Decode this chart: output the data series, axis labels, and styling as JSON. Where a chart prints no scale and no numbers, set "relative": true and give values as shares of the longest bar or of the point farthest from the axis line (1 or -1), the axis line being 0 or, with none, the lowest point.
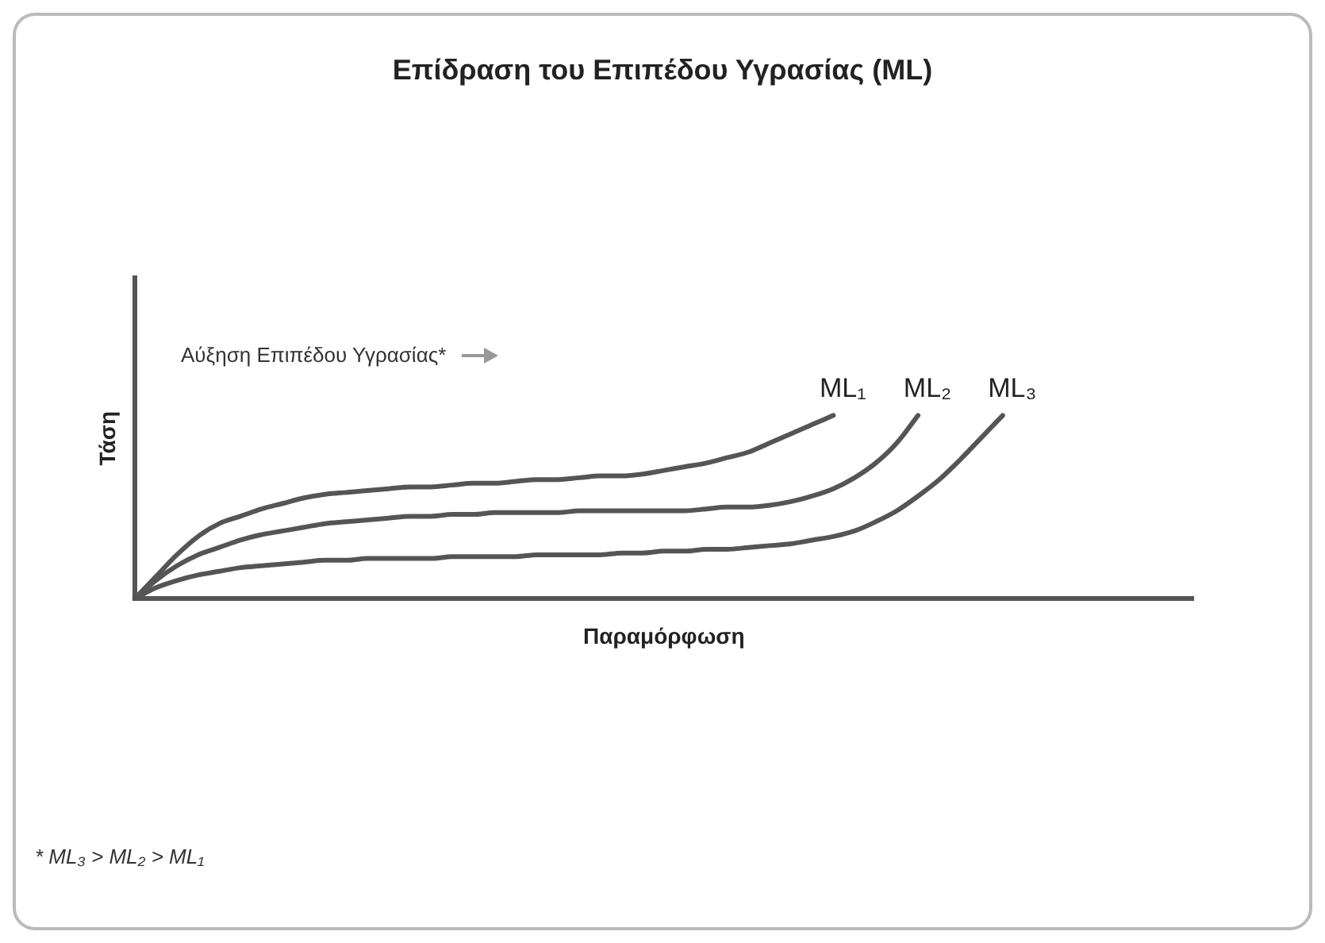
{
  "chart_data": {
    "type": "line",
    "relative": true,
    "title": "Επίδραση του Επιπέδου Υγρασίας (ML)",
    "xlabel": "Παραμόρφωση",
    "ylabel": "Τάση",
    "tick_labels": false,
    "legend": false,
    "annotations": [
      "Αύξηση Επιπέδου Υγρασίας*",
      "* ML₃ > ML₂ > ML₁"
    ],
    "categories": [
      null,
      null,
      null,
      null,
      null,
      null,
      null,
      null,
      null,
      null,
      null,
      null,
      null,
      null,
      null,
      null,
      null,
      null,
      null,
      null,
      null,
      null,
      null,
      null,
      null,
      null,
      null,
      null,
      null,
      null,
      null,
      null,
      null,
      null,
      null,
      null,
      null,
      null,
      null,
      null,
      null,
      null,
      null,
      null,
      null,
      null,
      null,
      null,
      null,
      null,
      null
    ],
    "series": [
      {
        "name": "ML₁",
        "color": "#555555",
        "values": [
          0,
          0.12,
          0.24,
          0.34,
          0.41,
          0.45,
          0.49,
          0.52,
          0.55,
          0.57,
          0.58,
          0.59,
          0.6,
          0.61,
          0.61,
          0.62,
          0.63,
          0.63,
          0.64,
          0.65,
          0.65,
          0.66,
          0.67,
          0.67,
          0.68,
          0.7,
          0.72,
          0.74,
          0.77,
          0.8,
          0.85,
          0.9,
          0.95,
          1,
          null,
          null,
          null,
          null,
          null,
          null,
          null,
          null,
          null,
          null,
          null,
          null,
          null,
          null,
          null,
          null,
          null
        ]
      },
      {
        "name": "ML₂",
        "color": "#555555",
        "values": [
          0,
          0.1,
          0.18,
          0.24,
          0.28,
          0.32,
          0.35,
          0.37,
          0.39,
          0.41,
          0.42,
          0.43,
          0.44,
          0.45,
          0.45,
          0.46,
          0.46,
          0.47,
          0.47,
          0.47,
          0.47,
          0.48,
          0.48,
          0.48,
          0.48,
          0.48,
          0.48,
          0.49,
          0.5,
          0.5,
          0.51,
          0.53,
          0.56,
          0.6,
          0.66,
          0.74,
          0.85,
          1,
          null,
          null,
          null,
          null,
          null,
          null,
          null,
          null,
          null,
          null,
          null,
          null,
          null
        ]
      },
      {
        "name": "ML₃",
        "color": "#555555",
        "values": [
          0,
          0.06,
          0.1,
          0.13,
          0.15,
          0.17,
          0.18,
          0.19,
          0.2,
          0.21,
          0.21,
          0.22,
          0.22,
          0.22,
          0.22,
          0.23,
          0.23,
          0.23,
          0.23,
          0.24,
          0.24,
          0.24,
          0.24,
          0.25,
          0.25,
          0.26,
          0.26,
          0.27,
          0.27,
          0.28,
          0.29,
          0.3,
          0.32,
          0.34,
          0.37,
          0.42,
          0.48,
          0.56,
          0.65,
          0.76,
          0.88,
          1,
          null,
          null,
          null,
          null,
          null,
          null,
          null,
          null,
          null
        ]
      }
    ]
  }
}
